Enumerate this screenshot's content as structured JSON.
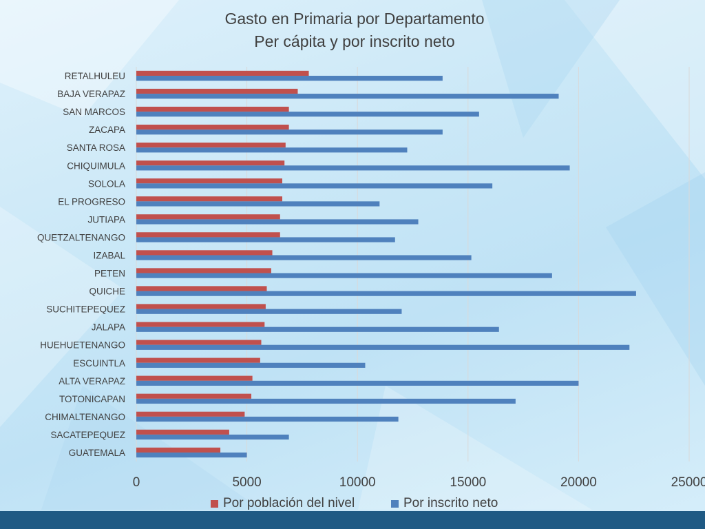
{
  "colors": {
    "series1": "#c0504d",
    "series2": "#4f81bd",
    "band": "#1f5a84",
    "grid": "#d9d9d9"
  },
  "chart_data": {
    "type": "bar",
    "orientation": "horizontal",
    "title": "Gasto en Primaria por Departamento",
    "subtitle": "Per cápita y por inscrito neto",
    "categories": [
      "RETALHULEU",
      "BAJA VERAPAZ",
      "SAN MARCOS",
      "ZACAPA",
      "SANTA ROSA",
      "CHIQUIMULA",
      "SOLOLA",
      "EL PROGRESO",
      "JUTIAPA",
      "QUETZALTENANGO",
      "IZABAL",
      "PETEN",
      "QUICHE",
      "SUCHITEPEQUEZ",
      "JALAPA",
      "HUEHUETENANGO",
      "ESCUINTLA",
      "ALTA VERAPAZ",
      "TOTONICAPAN",
      "CHIMALTENANGO",
      "SACATEPEQUEZ",
      "GUATEMALA"
    ],
    "series": [
      {
        "name": "Por población del nivel",
        "values": [
          7800,
          7300,
          6900,
          6900,
          6750,
          6700,
          6600,
          6600,
          6500,
          6500,
          6150,
          6100,
          5900,
          5850,
          5800,
          5650,
          5600,
          5250,
          5200,
          4900,
          4200,
          3800
        ]
      },
      {
        "name": "Por inscrito neto",
        "values": [
          13850,
          19100,
          15500,
          13850,
          12250,
          19600,
          16100,
          11000,
          12750,
          11700,
          15150,
          18800,
          22600,
          12000,
          16400,
          22300,
          10350,
          20000,
          17150,
          11850,
          6900,
          5000
        ]
      }
    ],
    "xlim": [
      0,
      25000
    ],
    "xticks": [
      0,
      5000,
      10000,
      15000,
      20000,
      25000
    ],
    "grid": true,
    "legend": "bottom"
  }
}
